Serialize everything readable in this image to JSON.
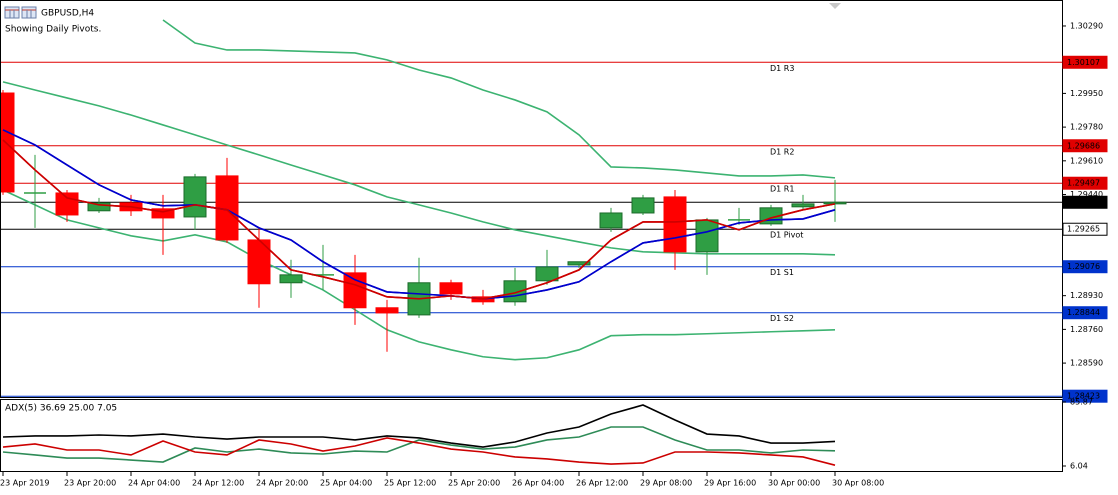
{
  "chart_data": {
    "type": "candlestick",
    "title": "GBPUSD,H4",
    "subtitle": "Showing Daily Pivots.",
    "categories": [
      "23 Apr 2019",
      null,
      "23 Apr 20:00",
      null,
      "24 Apr 04:00",
      null,
      "24 Apr 12:00",
      null,
      "24 Apr 20:00",
      null,
      "25 Apr 04:00",
      null,
      "25 Apr 12:00",
      null,
      "25 Apr 20:00",
      null,
      "26 Apr 04:00",
      null,
      "26 Apr 12:00",
      null,
      "29 Apr 08:00",
      null,
      "29 Apr 16:00",
      null,
      "30 Apr 00:00",
      null,
      "30 Apr 08:00"
    ],
    "open": [
      1.29952,
      1.29448,
      1.29448,
      1.29358,
      1.29398,
      1.29368,
      1.29327,
      1.29534,
      1.29211,
      1.28995,
      1.29035,
      1.29045,
      1.28869,
      1.28833,
      1.28995,
      1.28924,
      1.28899,
      1.29005,
      1.29085,
      1.29272,
      1.29347,
      1.29428,
      1.29151,
      1.29312,
      1.29292,
      1.29378,
      1.29393
    ],
    "high": [
      1.29967,
      1.2964,
      1.29463,
      1.29423,
      1.29438,
      1.29438,
      1.29544,
      1.29625,
      1.29272,
      1.29111,
      1.29186,
      1.29136,
      1.28909,
      1.29121,
      1.2901,
      1.28959,
      1.2907,
      1.29161,
      1.29101,
      1.29373,
      1.29438,
      1.29463,
      1.29322,
      1.29373,
      1.29388,
      1.29438,
      1.29514
    ],
    "low": [
      1.29438,
      1.29272,
      1.29302,
      1.29347,
      1.29332,
      1.29136,
      1.29262,
      1.29196,
      1.28869,
      1.28919,
      1.28959,
      1.28783,
      1.28647,
      1.28818,
      1.28909,
      1.28884,
      1.28879,
      1.28985,
      1.2907,
      1.29252,
      1.29337,
      1.2906,
      1.29035,
      1.29287,
      1.29282,
      1.29363,
      1.29302
    ],
    "close": [
      1.29453,
      1.29448,
      1.29337,
      1.29398,
      1.29358,
      1.29322,
      1.29529,
      1.29211,
      1.2899,
      1.29035,
      1.29035,
      1.28869,
      1.28843,
      1.28995,
      1.28939,
      1.28899,
      1.29005,
      1.29075,
      1.29101,
      1.29347,
      1.29423,
      1.29151,
      1.29312,
      1.29312,
      1.29373,
      1.29393,
      1.29401
    ],
    "up_color": "#2f9e44",
    "down_color": "#ff0000",
    "series": [
      {
        "color": "#3cb371",
        "values": [
          null,
          null,
          null,
          null,
          null,
          1.3032,
          1.30204,
          1.30169,
          1.30169,
          1.30164,
          1.30159,
          1.30154,
          1.30119,
          1.30068,
          1.30028,
          1.29967,
          1.29917,
          1.29857,
          1.29741,
          1.29579,
          1.29574,
          1.29564,
          1.29549,
          1.29534,
          1.29534,
          1.29539,
          1.29524
        ]
      },
      {
        "color": "#3cb371",
        "values": [
          1.30008,
          1.29967,
          1.29927,
          1.29887,
          1.29841,
          1.29791,
          1.29741,
          1.2969,
          1.2964,
          1.29589,
          1.29539,
          1.29489,
          1.29428,
          1.29388,
          1.29347,
          1.29302,
          1.29262,
          1.29232,
          1.29201,
          1.29171,
          1.29151,
          1.29146,
          1.29141,
          1.29141,
          1.29141,
          1.29141,
          1.29136
        ]
      },
      {
        "color": "#3cb371",
        "values": [
          1.29463,
          1.29388,
          1.29312,
          1.29272,
          1.29232,
          1.29206,
          1.29237,
          1.29201,
          1.29111,
          1.29035,
          1.28959,
          1.28859,
          1.28758,
          1.28697,
          1.28657,
          1.28622,
          1.28607,
          1.28617,
          1.28657,
          1.28728,
          1.28733,
          1.28733,
          1.28738,
          1.28743,
          1.28748,
          1.28753,
          1.28758
        ]
      },
      {
        "color": "#0000cc",
        "values": [
          1.29766,
          1.2969,
          1.29589,
          1.29489,
          1.29413,
          1.29383,
          1.29388,
          1.29363,
          1.29272,
          1.29211,
          1.29101,
          1.2901,
          1.28949,
          1.28939,
          1.28929,
          1.28914,
          1.28929,
          1.28959,
          1.29,
          1.29101,
          1.29196,
          1.29221,
          1.29252,
          1.29297,
          1.29312,
          1.29317,
          1.29363
        ]
      },
      {
        "color": "#cc0000",
        "values": [
          1.29715,
          1.29564,
          1.29423,
          1.29388,
          1.29378,
          1.29353,
          1.29388,
          1.29363,
          1.29211,
          1.2906,
          1.29025,
          1.28985,
          1.28924,
          1.28914,
          1.28929,
          1.28914,
          1.28944,
          1.28995,
          1.2906,
          1.29211,
          1.29302,
          1.29302,
          1.29312,
          1.29262,
          1.29322,
          1.29363,
          1.29393
        ]
      }
    ],
    "ylim": [
      1.28419,
      1.30421
    ],
    "yticks": [
      {
        "value": 1.3029,
        "label": "1.30290"
      },
      {
        "value": 1.2995,
        "label": "1.29950"
      },
      {
        "value": 1.2978,
        "label": "1.29780"
      },
      {
        "value": 1.2961,
        "label": "1.29610"
      },
      {
        "value": 1.2944,
        "label": "1.29440"
      },
      {
        "value": 1.2893,
        "label": "1.28930"
      },
      {
        "value": 1.2876,
        "label": "1.28760"
      },
      {
        "value": 1.2859,
        "label": "1.28590"
      }
    ],
    "pivots": [
      {
        "name": "D1 R3",
        "value": 1.30107,
        "label": "1.30107",
        "color": "#e00000"
      },
      {
        "name": "D1 R2",
        "value": 1.29686,
        "label": "1.29686",
        "color": "#e00000"
      },
      {
        "name": "D1 R1",
        "value": 1.29497,
        "label": "1.29497",
        "color": "#e00000"
      },
      {
        "name": "D1 Pivot",
        "value": 1.29265,
        "label": "1.29265",
        "color": "#000000"
      },
      {
        "name": "D1 S1",
        "value": 1.29076,
        "label": "1.29076",
        "color": "#0033cc"
      },
      {
        "name": "D1 S2",
        "value": 1.28844,
        "label": "1.28844",
        "color": "#0033cc"
      },
      {
        "value": 1.28423,
        "label": "1.28423",
        "color": "#0033cc"
      }
    ],
    "current_price": {
      "value": 1.29401,
      "label": "1.29401",
      "color": "#000000"
    },
    "indicator": {
      "title": "ADX(5) 36.69 25.00 7.05",
      "ylim": [
        6.04,
        85.87
      ],
      "yticks": [
        85.87,
        6.04
      ],
      "series": [
        {
          "color": "#000000",
          "values": [
            42.2,
            43.5,
            43.5,
            44.7,
            43.5,
            45.9,
            42.2,
            39.7,
            42.2,
            42.2,
            42.2,
            38.5,
            43.5,
            41.0,
            34.7,
            29.7,
            36.0,
            47.2,
            54.7,
            70.9,
            82.1,
            63.4,
            45.9,
            43.5,
            34.7,
            34.7,
            36.69
          ]
        },
        {
          "color": "#2e8b57",
          "values": [
            23.5,
            19.8,
            16.0,
            16.0,
            13.5,
            11.0,
            28.5,
            23.5,
            27.2,
            22.3,
            21.0,
            24.7,
            23.5,
            38.5,
            32.2,
            27.2,
            29.7,
            38.5,
            42.2,
            54.7,
            54.7,
            38.5,
            26.0,
            26.0,
            22.3,
            26.0,
            25.0
          ]
        },
        {
          "color": "#cc0000",
          "values": [
            29.7,
            33.5,
            26.0,
            26.0,
            19.8,
            37.2,
            23.5,
            19.8,
            38.5,
            33.5,
            24.7,
            31.0,
            41.0,
            34.7,
            27.2,
            23.5,
            17.3,
            14.8,
            11.0,
            8.5,
            9.8,
            23.5,
            23.5,
            22.3,
            19.8,
            17.3,
            7.05
          ]
        }
      ]
    }
  }
}
